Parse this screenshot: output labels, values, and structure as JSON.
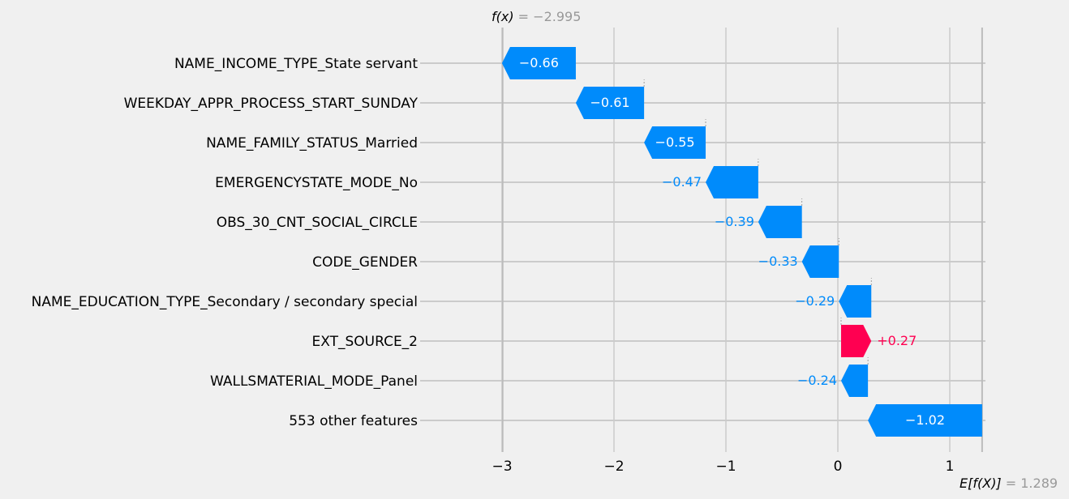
{
  "chart_data": {
    "type": "waterfall",
    "base_value": 1.289,
    "final_value": -2.995,
    "features": [
      {
        "name": "NAME_INCOME_TYPE_State servant",
        "value": -0.66,
        "label": "−0.66"
      },
      {
        "name": "WEEKDAY_APPR_PROCESS_START_SUNDAY",
        "value": -0.61,
        "label": "−0.61"
      },
      {
        "name": "NAME_FAMILY_STATUS_Married",
        "value": -0.55,
        "label": "−0.55"
      },
      {
        "name": "EMERGENCYSTATE_MODE_No",
        "value": -0.47,
        "label": "−0.47"
      },
      {
        "name": "OBS_30_CNT_SOCIAL_CIRCLE",
        "value": -0.39,
        "label": "−0.39"
      },
      {
        "name": "CODE_GENDER",
        "value": -0.33,
        "label": "−0.33"
      },
      {
        "name": "NAME_EDUCATION_TYPE_Secondary / secondary special",
        "value": -0.29,
        "label": "−0.29"
      },
      {
        "name": "EXT_SOURCE_2",
        "value": 0.27,
        "label": "+0.27"
      },
      {
        "name": "WALLSMATERIAL_MODE_Panel",
        "value": -0.24,
        "label": "−0.24"
      },
      {
        "name": "553 other features",
        "value": -1.02,
        "label": "−1.02"
      }
    ],
    "xticks": [
      -3,
      -2,
      -1,
      0,
      1
    ],
    "xtick_labels": [
      "−3",
      "−2",
      "−1",
      "0",
      "1"
    ],
    "xlim": [
      -3.7,
      1.35
    ],
    "fx_label": {
      "var": "f(x)",
      "eq": " = −2.995"
    },
    "ex_label": {
      "var": "E[f(X)]",
      "eq": " = 1.289"
    },
    "grid": true,
    "colors": {
      "negative": "#008bfb",
      "positive": "#ff0051",
      "grid": "#cbcbcb",
      "text": "#000000",
      "muted": "#999999",
      "background": "#f0f0f0"
    }
  }
}
